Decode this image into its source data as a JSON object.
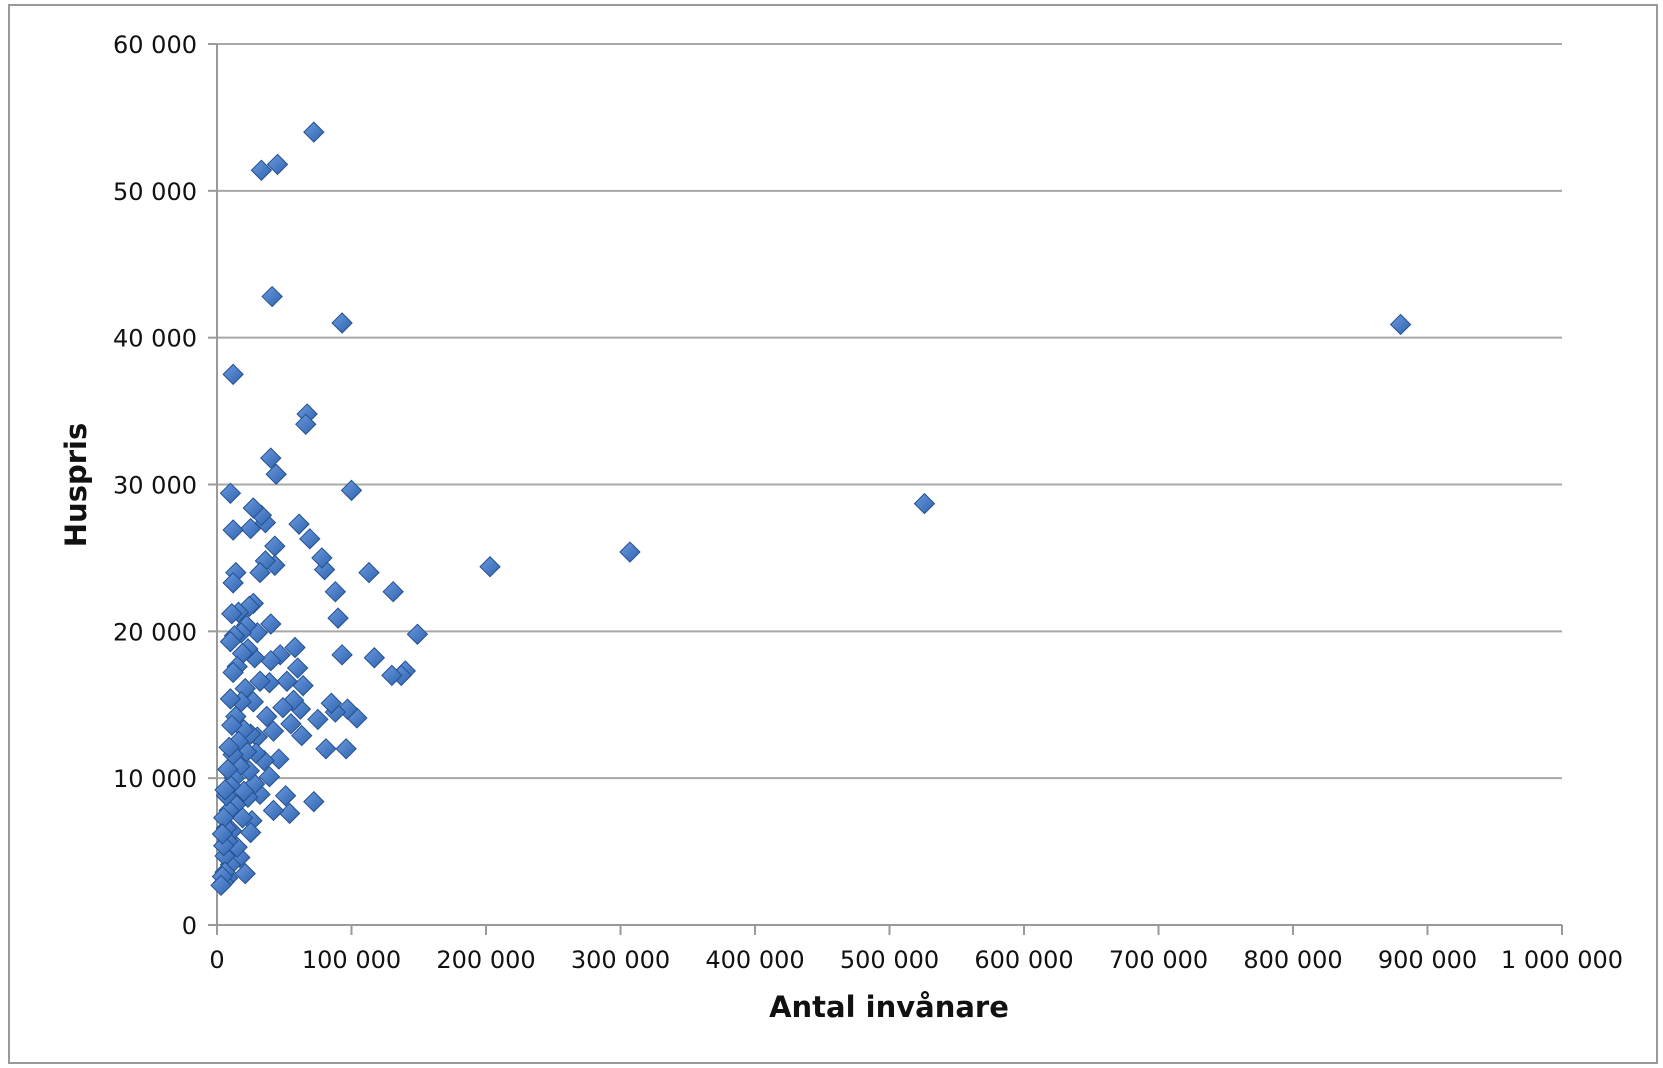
{
  "chart_data": {
    "type": "scatter",
    "title": "",
    "xlabel": "Antal invånare",
    "ylabel": "Huspris",
    "xlim": [
      0,
      1000000
    ],
    "ylim": [
      0,
      60000
    ],
    "x_ticks": [
      0,
      100000,
      200000,
      300000,
      400000,
      500000,
      600000,
      700000,
      800000,
      900000,
      1000000
    ],
    "x_tick_labels": [
      "0",
      "100 000",
      "200 000",
      "300 000",
      "400 000",
      "500 000",
      "600 000",
      "700 000",
      "800 000",
      "900 000",
      "1 000 000"
    ],
    "y_ticks": [
      0,
      10000,
      20000,
      30000,
      40000,
      50000,
      60000
    ],
    "y_tick_labels": [
      "0",
      "10 000",
      "20 000",
      "30 000",
      "40 000",
      "50 000",
      "60 000"
    ],
    "horizontal_grid": true,
    "vertical_grid": false,
    "legend": "none",
    "marker": "diamond",
    "marker_color": "#3a73c0",
    "series": [
      {
        "points": [
          [
            880000,
            40900
          ],
          [
            526000,
            28700
          ],
          [
            307000,
            25400
          ],
          [
            203000,
            24400
          ],
          [
            149000,
            19800
          ],
          [
            140000,
            17300
          ],
          [
            137000,
            17000
          ],
          [
            131000,
            22700
          ],
          [
            130000,
            17000
          ],
          [
            117000,
            18200
          ],
          [
            113000,
            24000
          ],
          [
            104000,
            14100
          ],
          [
            100000,
            29600
          ],
          [
            97000,
            14700
          ],
          [
            96000,
            12000
          ],
          [
            93000,
            41000
          ],
          [
            93000,
            18400
          ],
          [
            90000,
            20900
          ],
          [
            88000,
            22700
          ],
          [
            88000,
            14500
          ],
          [
            85000,
            15100
          ],
          [
            81000,
            12000
          ],
          [
            80000,
            24200
          ],
          [
            78000,
            25000
          ],
          [
            75000,
            14000
          ],
          [
            72000,
            54000
          ],
          [
            72000,
            8400
          ],
          [
            69000,
            26300
          ],
          [
            67000,
            34800
          ],
          [
            66000,
            34100
          ],
          [
            64000,
            16300
          ],
          [
            63000,
            12900
          ],
          [
            62000,
            14700
          ],
          [
            61000,
            27300
          ],
          [
            60000,
            17500
          ],
          [
            58000,
            18900
          ],
          [
            57000,
            15300
          ],
          [
            55000,
            13700
          ],
          [
            54000,
            7600
          ],
          [
            52000,
            16600
          ],
          [
            51000,
            8800
          ],
          [
            49000,
            14800
          ],
          [
            47000,
            18400
          ],
          [
            46000,
            11300
          ],
          [
            45000,
            51800
          ],
          [
            44000,
            30700
          ],
          [
            43000,
            25800
          ],
          [
            43000,
            24500
          ],
          [
            42000,
            13200
          ],
          [
            42000,
            7800
          ],
          [
            41000,
            42800
          ],
          [
            40000,
            31800
          ],
          [
            40000,
            20500
          ],
          [
            40000,
            18000
          ],
          [
            39000,
            16500
          ],
          [
            39000,
            10100
          ],
          [
            37000,
            14200
          ],
          [
            36000,
            27400
          ],
          [
            36000,
            24800
          ],
          [
            35000,
            11200
          ],
          [
            33000,
            51400
          ],
          [
            33000,
            27900
          ],
          [
            32000,
            24000
          ],
          [
            32000,
            16600
          ],
          [
            32000,
            8900
          ],
          [
            30000,
            19900
          ],
          [
            30000,
            12800
          ],
          [
            29000,
            11700
          ],
          [
            28000,
            18200
          ],
          [
            28000,
            9600
          ],
          [
            27000,
            28400
          ],
          [
            27000,
            21900
          ],
          [
            27000,
            15200
          ],
          [
            26000,
            7100
          ],
          [
            25000,
            27000
          ],
          [
            25000,
            13000
          ],
          [
            25000,
            6300
          ],
          [
            24000,
            21700
          ],
          [
            24000,
            10500
          ],
          [
            23000,
            18800
          ],
          [
            23000,
            8700
          ],
          [
            22000,
            20400
          ],
          [
            22000,
            11800
          ],
          [
            21000,
            16100
          ],
          [
            21000,
            3500
          ],
          [
            20000,
            13300
          ],
          [
            20000,
            9100
          ],
          [
            19000,
            18500
          ],
          [
            19000,
            7300
          ],
          [
            18000,
            19900
          ],
          [
            18000,
            15200
          ],
          [
            17000,
            10800
          ],
          [
            17000,
            4600
          ],
          [
            16000,
            21300
          ],
          [
            16000,
            12500
          ],
          [
            15000,
            17600
          ],
          [
            15000,
            5300
          ],
          [
            14000,
            24000
          ],
          [
            14000,
            14200
          ],
          [
            14000,
            8200
          ],
          [
            13000,
            19700
          ],
          [
            13000,
            10000
          ],
          [
            12000,
            37500
          ],
          [
            12000,
            26900
          ],
          [
            12000,
            23300
          ],
          [
            12000,
            17200
          ],
          [
            12000,
            11600
          ],
          [
            11000,
            21200
          ],
          [
            11000,
            13600
          ],
          [
            11000,
            6400
          ],
          [
            10000,
            29400
          ],
          [
            10000,
            19300
          ],
          [
            10000,
            15400
          ],
          [
            10000,
            9500
          ],
          [
            10000,
            4100
          ],
          [
            9000,
            12100
          ],
          [
            9000,
            7800
          ],
          [
            8000,
            10600
          ],
          [
            8000,
            5700
          ],
          [
            8000,
            3200
          ],
          [
            7000,
            8800
          ],
          [
            7000,
            6600
          ],
          [
            6000,
            9200
          ],
          [
            6000,
            4700
          ],
          [
            6000,
            3600
          ],
          [
            5000,
            7300
          ],
          [
            5000,
            5400
          ],
          [
            5000,
            2900
          ],
          [
            4000,
            6200
          ],
          [
            4000,
            3300
          ],
          [
            3000,
            2700
          ]
        ]
      }
    ]
  }
}
